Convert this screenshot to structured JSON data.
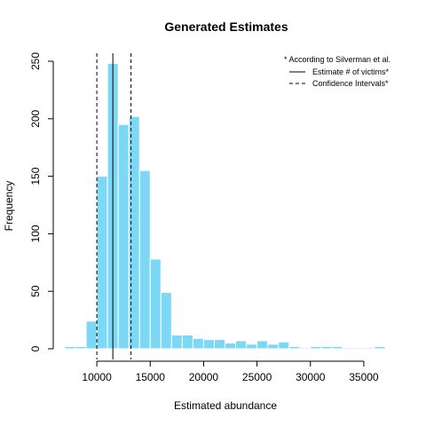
{
  "chart_data": {
    "type": "bar",
    "title": "Generated Estimates",
    "xlabel": "Estimated abundance",
    "ylabel": "Frequency",
    "bar_color": "#7dd8f5",
    "bin_edges": [
      7000,
      8000,
      9000,
      10000,
      11000,
      12000,
      13000,
      14000,
      15000,
      16000,
      17000,
      18000,
      19000,
      20000,
      21000,
      22000,
      23000,
      24000,
      25000,
      26000,
      27000,
      28000,
      29000,
      30000,
      31000,
      32000,
      33000,
      34000,
      35000,
      36000,
      37000
    ],
    "values": [
      2,
      2,
      24,
      150,
      248,
      195,
      202,
      155,
      78,
      49,
      12,
      12,
      9,
      8,
      8,
      5,
      7,
      4,
      7,
      4,
      6,
      2,
      1,
      2,
      2,
      2,
      1,
      1,
      1,
      2
    ],
    "xlim": [
      7000,
      37000
    ],
    "ylim": [
      0,
      250
    ],
    "xticks": [
      10000,
      15000,
      20000,
      25000,
      30000,
      35000
    ],
    "xtick_labels": [
      "10000",
      "15000",
      "20000",
      "25000",
      "30000",
      "35000"
    ],
    "yticks": [
      0,
      50,
      100,
      150,
      200,
      250
    ],
    "ytick_labels": [
      "0",
      "50",
      "100",
      "150",
      "200",
      "250"
    ],
    "estimate_line": 11500,
    "confidence_lines": [
      10000,
      13200
    ],
    "legend": {
      "note": "* According to Silverman et al.",
      "entries": [
        {
          "label": "Estimate # of victims*",
          "style": "solid"
        },
        {
          "label": "Confidence Intervals*",
          "style": "dashed"
        }
      ],
      "placement": "top-right"
    }
  }
}
